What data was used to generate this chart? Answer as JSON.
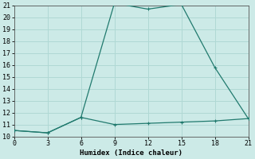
{
  "line1_x": [
    0,
    3,
    6,
    9,
    12,
    15,
    18,
    21
  ],
  "line1_y": [
    10.5,
    10.3,
    11.6,
    21.2,
    20.7,
    21.1,
    15.8,
    11.5
  ],
  "line2_x": [
    0,
    3,
    6,
    9,
    12,
    15,
    18,
    21
  ],
  "line2_y": [
    10.5,
    10.3,
    11.6,
    11.0,
    11.1,
    11.2,
    11.3,
    11.5
  ],
  "color": "#217a6e",
  "xlabel": "Humidex (Indice chaleur)",
  "xlim": [
    0,
    21
  ],
  "ylim": [
    10,
    21
  ],
  "xticks": [
    0,
    3,
    6,
    9,
    12,
    15,
    18,
    21
  ],
  "yticks": [
    10,
    11,
    12,
    13,
    14,
    15,
    16,
    17,
    18,
    19,
    20,
    21
  ],
  "bg_color": "#cceae7",
  "grid_color": "#b0d8d4"
}
